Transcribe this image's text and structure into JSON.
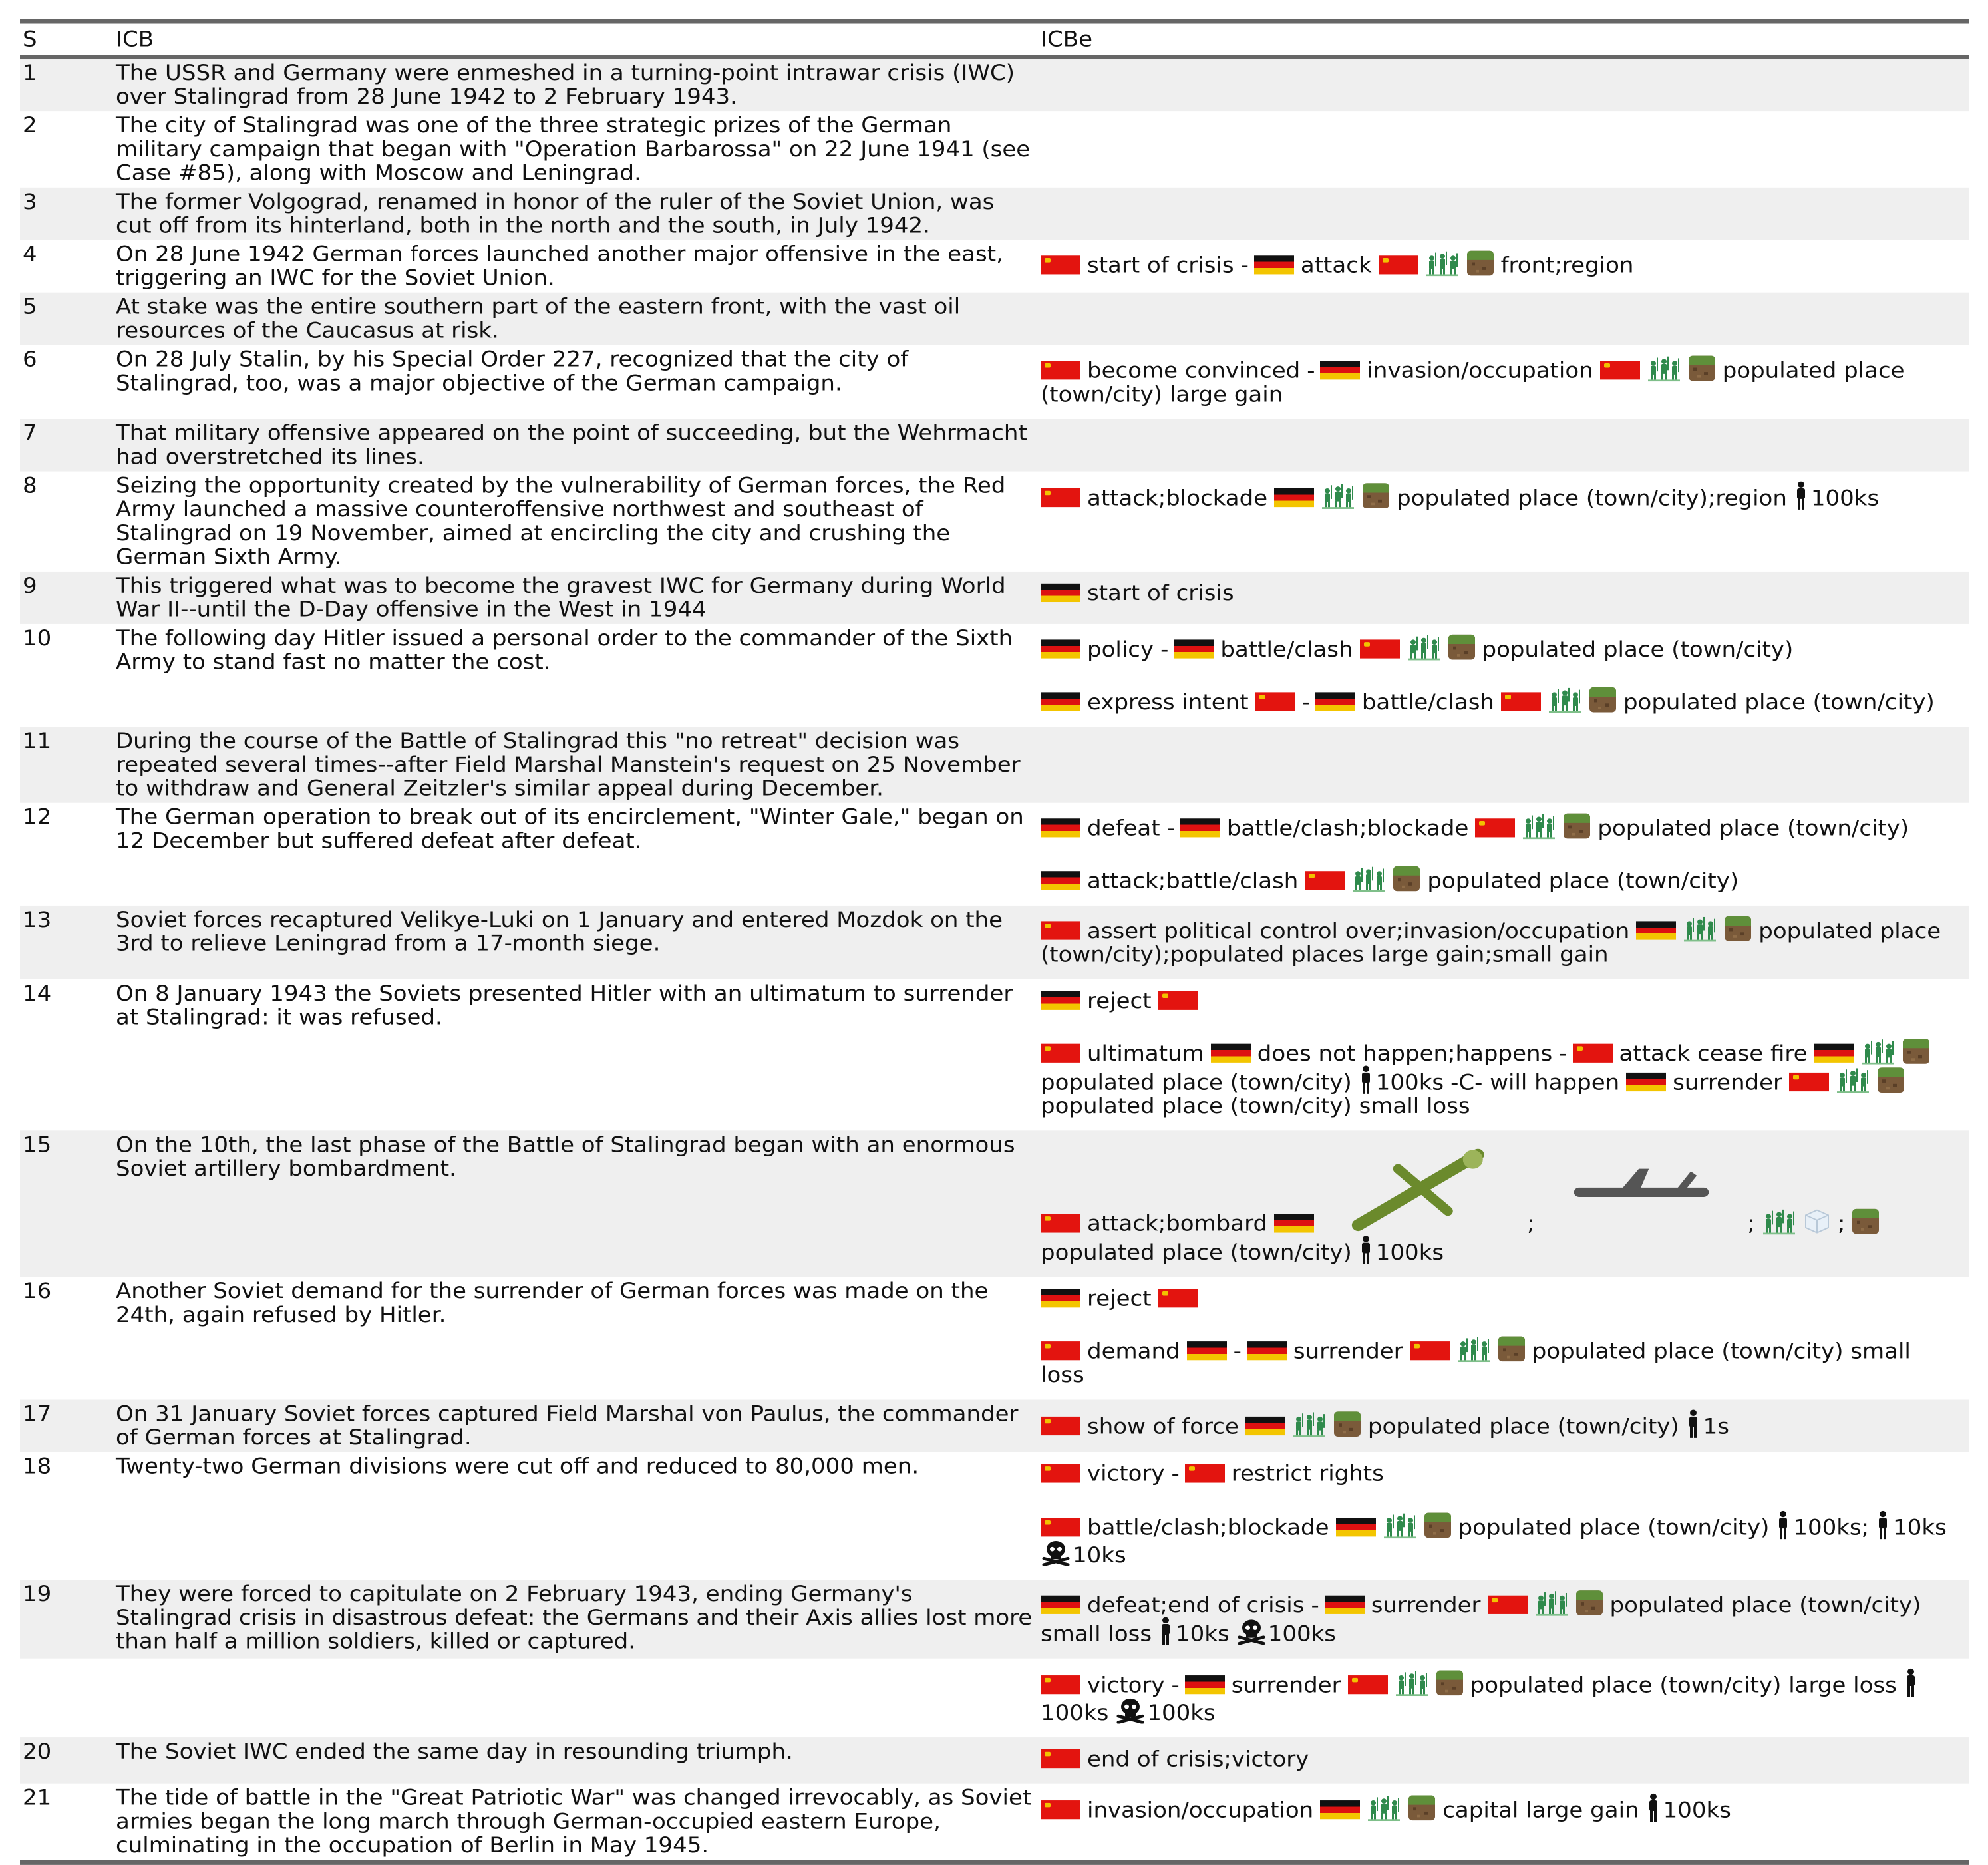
{
  "header": {
    "col_s": "S",
    "col_icb": "ICB",
    "col_icbe": "ICBe"
  },
  "colors": {
    "rule": "#666666",
    "shade": "#efefef",
    "ussr_flag": "#e3140f",
    "germany_flag": [
      "#111111",
      "#dd1111",
      "#f3c500"
    ]
  },
  "icons": [
    "ussr-flag-icon",
    "germany-flag-icon",
    "soldiers-icon",
    "terrain-icon",
    "person-icon",
    "skull-icon",
    "aircraft-icon",
    "cube-icon"
  ],
  "rows": [
    {
      "s": "1",
      "icb": "The USSR and Germany were enmeshed in a turning-point intrawar crisis (IWC) over Stalingrad from 28 June 1942 to 2 February 1943.",
      "icbe": []
    },
    {
      "s": "2",
      "icb": "The city of Stalingrad was one of the three strategic prizes of the German military campaign that began with \"Operation Barbarossa\" on 22 June 1941 (see Case #85), along with Moscow and Leningrad.",
      "icbe": []
    },
    {
      "s": "3",
      "icb": "The former Volgograd, renamed in honor of the ruler of the Soviet Union, was cut off from its hinterland, both in the north and the south, in July 1942.",
      "icbe": []
    },
    {
      "s": "4",
      "icb": "On 28 June 1942 German forces launched another major offensive in the east, triggering an IWC for the Soviet Union.",
      "icbe": [
        {
          "a1": "ussr",
          "act1": "start of crisis",
          "a2": "ger",
          "act2": "attack",
          "target": "ussr",
          "icons": [
            "soldiers",
            "terrain"
          ],
          "detail": "front;region"
        }
      ]
    },
    {
      "s": "5",
      "icb": "At stake was the entire southern part of the eastern front, with the vast oil resources of the Caucasus at risk.",
      "icbe": []
    },
    {
      "s": "6",
      "icb": "On 28 July Stalin, by his Special Order 227, recognized that the city of Stalingrad, too, was a major objective of the German campaign.",
      "icbe": [
        {
          "a1": "ussr",
          "act1": "become convinced",
          "a2": "ger",
          "act2": "invasion/occupation",
          "target": "ussr",
          "icons": [
            "soldiers",
            "terrain"
          ],
          "detail": "populated place (town/city) large gain"
        }
      ]
    },
    {
      "s": "7",
      "icb": "That military offensive appeared on the point of succeeding, but the Wehrmacht had overstretched its lines.",
      "icbe": []
    },
    {
      "s": "8",
      "icb": "Seizing the opportunity created by the vulnerability of German forces, the Red Army launched a massive counteroffensive northwest and southeast of Stalingrad on 19 November, aimed at encircling the city and crushing the German Sixth Army.",
      "icbe": [
        {
          "a1": "ussr",
          "act1": "attack;blockade",
          "target": "ger",
          "icons": [
            "soldiers",
            "terrain"
          ],
          "detail": "populated place (town/city);region",
          "troops": "100ks"
        }
      ]
    },
    {
      "s": "9",
      "icb": "This triggered what was to become the gravest IWC for Germany during World War II--until the D-Day offensive in the West in 1944",
      "icbe": [
        {
          "a1": "ger",
          "act1": "start of crisis"
        }
      ]
    },
    {
      "s": "10",
      "icb": "The following day Hitler issued a personal order to the commander of the Sixth Army to stand fast no matter the cost.",
      "icbe": [
        {
          "a1": "ger",
          "act1": "policy",
          "a2": "ger",
          "act2": "battle/clash",
          "target": "ussr",
          "icons": [
            "soldiers",
            "terrain"
          ],
          "detail": "populated place (town/city)"
        },
        {
          "a1": "ger",
          "act1": "express intent",
          "target1": "ussr",
          "a2": "ger",
          "act2": "battle/clash",
          "target": "ussr",
          "icons": [
            "soldiers",
            "terrain"
          ],
          "detail": "populated place (town/city)"
        }
      ]
    },
    {
      "s": "11",
      "icb": "During the course of the Battle of Stalingrad this \"no retreat\" decision was repeated several times--after Field Marshal Manstein's request on 25 November to withdraw and General Zeitzler's similar appeal during December.",
      "icbe": []
    },
    {
      "s": "12",
      "icb": "The German operation to break out of its encirclement, \"Winter Gale,\" began on 12 December but suffered defeat after defeat.",
      "icbe": [
        {
          "a1": "ger",
          "act1": "defeat",
          "a2": "ger",
          "act2": "battle/clash;blockade",
          "target": "ussr",
          "icons": [
            "soldiers",
            "terrain"
          ],
          "detail": "populated place (town/city)"
        },
        {
          "a1": "ger",
          "act1": "attack;battle/clash",
          "target": "ussr",
          "icons": [
            "soldiers",
            "terrain"
          ],
          "detail": "populated place (town/city)"
        }
      ]
    },
    {
      "s": "13",
      "icb": "Soviet forces recaptured Velikye-Luki on 1 January and entered Mozdok on the 3rd to relieve Leningrad from a 17-month siege.",
      "icbe": [
        {
          "a1": "ussr",
          "act1": "assert political control over;invasion/occupation",
          "target": "ger",
          "icons": [
            "soldiers",
            "terrain"
          ],
          "detail": "populated place (town/city);populated places large gain;small gain"
        }
      ]
    },
    {
      "s": "14",
      "icb": "On 8 January 1943 the Soviets presented Hitler with an ultimatum to surrender at Stalingrad: it was refused.",
      "icbe": [
        {
          "a1": "ger",
          "act1": "reject",
          "target": "ussr"
        },
        {
          "a1": "ussr",
          "act1": "ultimatum",
          "target1": "ger",
          "act1b": "does not happen;happens",
          "a2": "ussr",
          "act2": "attack cease fire",
          "target": "ger",
          "icons": [
            "soldiers",
            "terrain"
          ],
          "detail": "populated place (town/city)",
          "troops": "100ks",
          "cond": "-C- will happen",
          "a3": "ger",
          "act3": "surrender",
          "target3": "ussr",
          "detail3": "populated place (town/city) small loss"
        }
      ]
    },
    {
      "s": "15",
      "icb": "On the 10th, the last phase of the Battle of Stalingrad began with an enormous Soviet artillery bombardment.",
      "icbe": [
        {
          "a1": "ussr",
          "act1": "attack;bombard",
          "target": "ger",
          "detail": "populated place (town/city)",
          "troops": "100ks"
        }
      ]
    },
    {
      "s": "16",
      "icb": "Another Soviet demand for the surrender of German forces was made on the 24th, again refused by Hitler.",
      "icbe": [
        {
          "a1": "ger",
          "act1": "reject",
          "target": "ussr"
        },
        {
          "a1": "ussr",
          "act1": "demand",
          "target1": "ger",
          "a2": "ger",
          "act2": "surrender",
          "target": "ussr",
          "icons": [
            "soldiers",
            "terrain"
          ],
          "detail": "populated place (town/city) small loss"
        }
      ]
    },
    {
      "s": "17",
      "icb": "On 31 January Soviet forces captured Field Marshal von Paulus, the commander of German forces at Stalingrad.",
      "icbe": [
        {
          "a1": "ussr",
          "act1": "show of force",
          "target": "ger",
          "icons": [
            "soldiers",
            "terrain"
          ],
          "detail": "populated place (town/city)",
          "troops": "1s"
        }
      ]
    },
    {
      "s": "18",
      "icb": "Twenty-two German divisions were cut off and reduced to 80,000 men.",
      "icbe": [
        {
          "a1": "ussr",
          "act1": "victory",
          "a2": "ussr",
          "act2": "restrict rights"
        },
        {
          "a1": "ussr",
          "act1": "battle/clash;blockade",
          "target": "ger",
          "icons": [
            "soldiers",
            "terrain"
          ],
          "detail": "populated place (town/city)",
          "troops": "100ks;",
          "troops2": "10ks",
          "dead": "10ks"
        }
      ]
    },
    {
      "s": "19",
      "icb": "They were forced to capitulate on 2 February 1943, ending Germany's Stalingrad crisis in disastrous defeat: the Germans and their Axis allies lost more than half a million soldiers, killed or captured.",
      "icbe": [
        {
          "a1": "ger",
          "act1": "defeat;end of crisis",
          "a2": "ger",
          "act2": "surrender",
          "target": "ussr",
          "icons": [
            "soldiers",
            "terrain"
          ],
          "detail": "populated place (town/city) small loss",
          "troops": "10ks",
          "dead": "100ks"
        }
      ]
    },
    {
      "s": "",
      "icb": "",
      "icbe": [
        {
          "a1": "ussr",
          "act1": "victory",
          "a2": "ger",
          "act2": "surrender",
          "target": "ussr",
          "icons": [
            "soldiers",
            "terrain"
          ],
          "detail": "populated place (town/city) large loss",
          "troops": "100ks",
          "dead": "100ks"
        }
      ]
    },
    {
      "s": "20",
      "icb": "The Soviet IWC ended the same day in resounding triumph.",
      "icbe": [
        {
          "a1": "ussr",
          "act1": "end of crisis;victory"
        }
      ]
    },
    {
      "s": "21",
      "icb": "The tide of battle in the \"Great Patriotic War\" was changed irrevocably, as Soviet armies began the long march through German-occupied eastern Europe, culminating in the occupation of Berlin in May 1945.",
      "icbe": [
        {
          "a1": "ussr",
          "act1": "invasion/occupation",
          "target": "ger",
          "icons": [
            "soldiers",
            "terrain"
          ],
          "detail": "capital large gain",
          "troops": "100ks"
        }
      ]
    }
  ]
}
